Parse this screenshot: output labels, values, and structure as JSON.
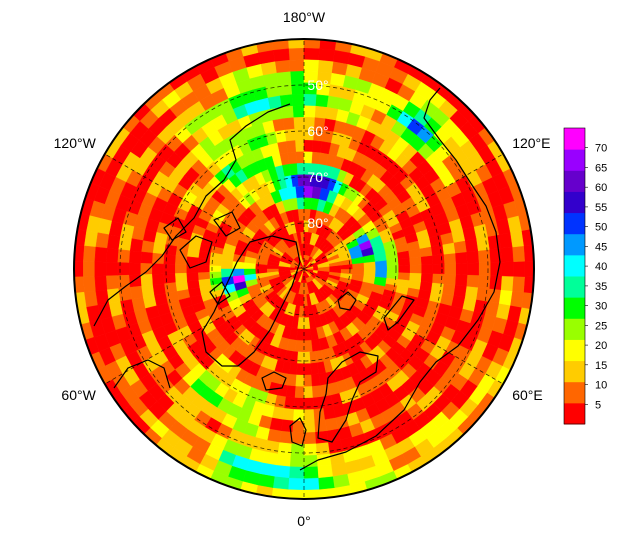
{
  "map": {
    "projection": "north polar stereographic",
    "center_latitude": 90,
    "edge_latitude": 40,
    "longitude_labels": [
      {
        "text": "180°W",
        "lon": 180
      },
      {
        "text": "120°E",
        "lon": 120
      },
      {
        "text": "60°E",
        "lon": 60
      },
      {
        "text": "0°",
        "lon": 0
      },
      {
        "text": "60°W",
        "lon": -60
      },
      {
        "text": "120°W",
        "lon": -120
      }
    ],
    "latitude_labels": [
      {
        "text": "50°",
        "lat": 50
      },
      {
        "text": "60°",
        "lat": 60
      },
      {
        "text": "70°",
        "lat": 70
      },
      {
        "text": "80°",
        "lat": 80
      }
    ],
    "graticule_style": "dashed",
    "coastlines": "black outlines of Greenland, Scandinavia, Europe, Siberia, Alaska and northern Canada"
  },
  "colorbar": {
    "min": 0,
    "max": 75,
    "ticks": [
      "5",
      "10",
      "15",
      "20",
      "25",
      "30",
      "35",
      "40",
      "45",
      "50",
      "55",
      "60",
      "65",
      "70"
    ],
    "colors": [
      "#ff0000",
      "#ff6600",
      "#ffcc00",
      "#ffff00",
      "#99ff00",
      "#00ff00",
      "#00ff99",
      "#00ffff",
      "#0099ff",
      "#0033ff",
      "#3300cc",
      "#6600cc",
      "#9900ff",
      "#ff00ff"
    ]
  }
}
